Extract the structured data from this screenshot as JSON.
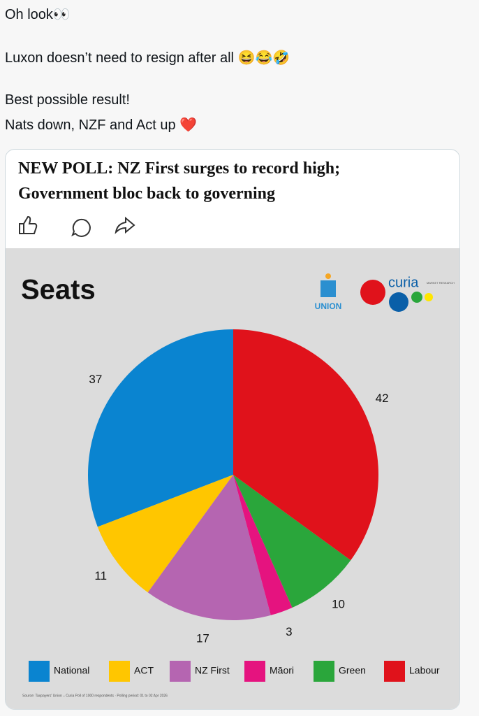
{
  "post": {
    "lines": [
      "Oh look👀",
      "Luxon doesn’t need to resign after all 😆😂🤣",
      "Best possible result!",
      "Nats down, NZF and Act up ❤️"
    ]
  },
  "card": {
    "headline": [
      "NEW POLL: NZ First surges to record high;",
      "Government bloc back to governing"
    ]
  },
  "logos": {
    "union": "UNION",
    "curia": "curia",
    "curia_sub": "MARKET RESEARCH"
  },
  "chart_data": {
    "type": "pie",
    "title": "Seats",
    "categories": [
      "National",
      "ACT",
      "NZ First",
      "Māori",
      "Green",
      "Labour"
    ],
    "values": [
      37,
      11,
      17,
      3,
      10,
      42
    ],
    "colors": [
      "#0a84d0",
      "#ffc600",
      "#b565b1",
      "#e5137f",
      "#2aa63b",
      "#e0121b"
    ],
    "source": "Source: Taxpayers' Union – Curia Poll of 1000 respondents · Polling period: 01 to 02 Apr 2026"
  }
}
